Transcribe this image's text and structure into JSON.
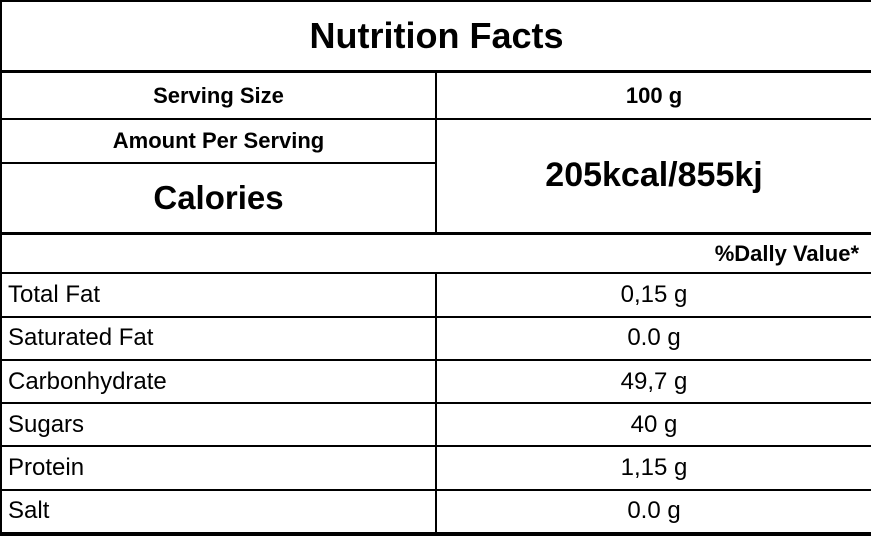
{
  "table": {
    "title": "Nutrition Facts",
    "serving": {
      "label": "Serving Size",
      "value": "100 g"
    },
    "amount_header": "Amount Per Serving",
    "calories": {
      "label": "Calories",
      "value": "205kcal/855kj"
    },
    "daily_value_header": "%Dally Value*",
    "nutrients": [
      {
        "label": "Total Fat",
        "value": "0,15 g"
      },
      {
        "label": "Saturated Fat",
        "value": "0.0 g"
      },
      {
        "label": "Carbonhydrate",
        "value": "49,7 g"
      },
      {
        "label": "Sugars",
        "value": "40 g"
      },
      {
        "label": "Protein",
        "value": "1,15 g"
      },
      {
        "label": "Salt",
        "value": "0.0 g"
      }
    ],
    "colors": {
      "text": "#000000",
      "border": "#000000",
      "background": "#ffffff"
    }
  }
}
